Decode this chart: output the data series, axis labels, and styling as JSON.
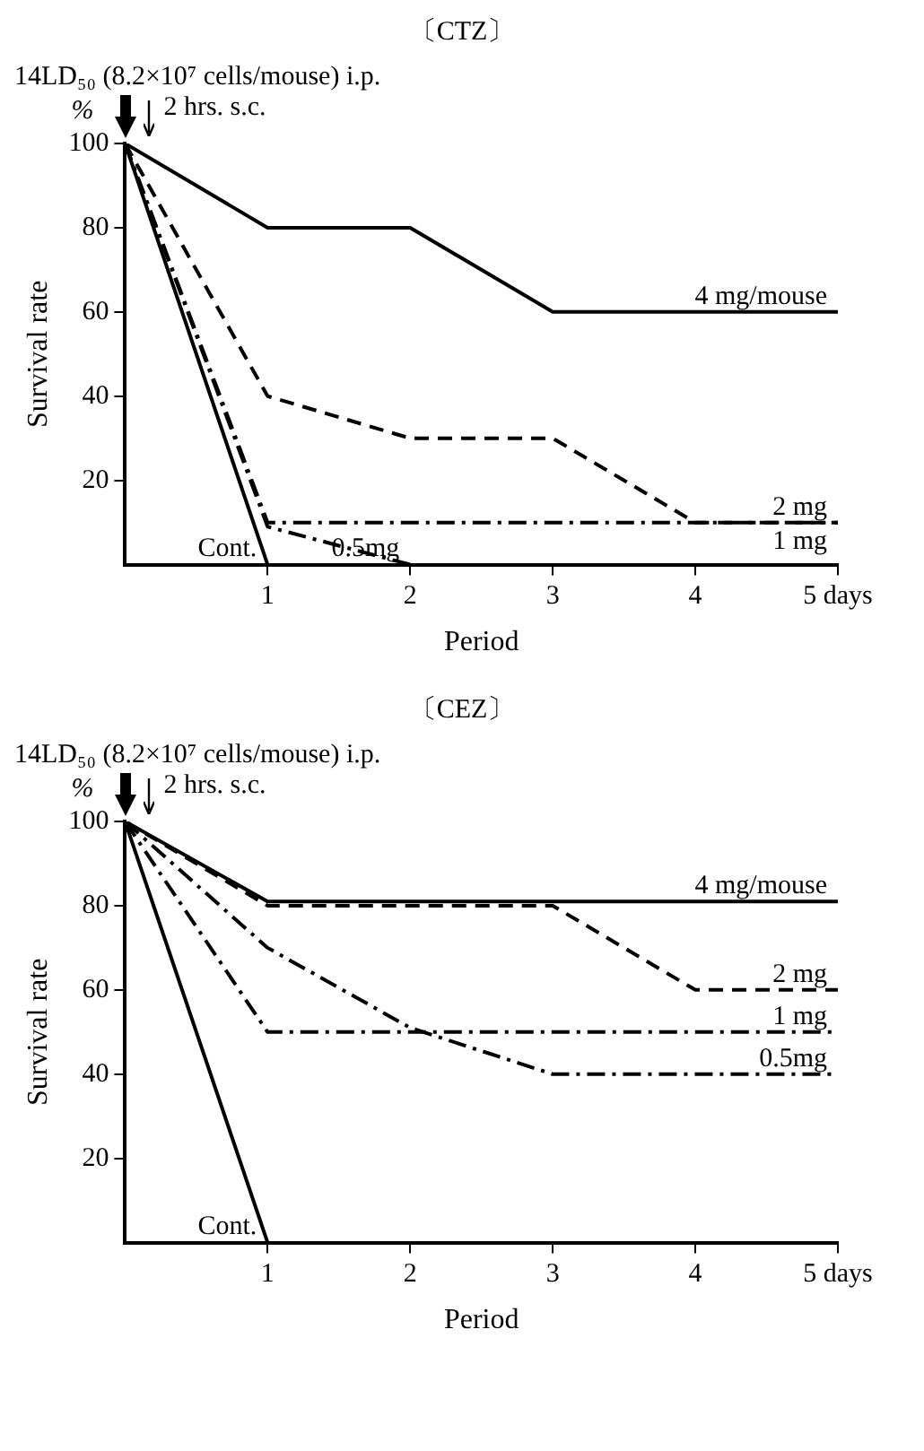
{
  "chart_data": [
    {
      "type": "line",
      "title": "〔CTZ〕",
      "xlabel": "Period",
      "ylabel": "Survival rate",
      "annotations": [
        "14LD₅₀ (8.2×10⁷ cells/mouse) i.p.",
        "%",
        "2 hrs. s.c."
      ],
      "xlim": [
        0,
        5
      ],
      "xticks": [
        1,
        2,
        3,
        4,
        {
          "value": 5,
          "label": "5 days"
        }
      ],
      "ylim": [
        0,
        100
      ],
      "yticks": [
        20,
        40,
        60,
        80,
        100
      ],
      "grid": false,
      "legend": false,
      "marker": "none",
      "series": [
        {
          "name": "4 mg/mouse",
          "color": "#000000",
          "line_style": "solid",
          "x": [
            0,
            1,
            2,
            3,
            4,
            5
          ],
          "values": [
            100,
            80,
            80,
            60,
            60,
            60
          ]
        },
        {
          "name": "2 mg",
          "color": "#000000",
          "line_style": "dashed",
          "x": [
            0,
            1,
            2,
            3,
            4,
            5
          ],
          "values": [
            100,
            40,
            30,
            30,
            10,
            10
          ]
        },
        {
          "name": "1 mg",
          "color": "#000000",
          "line_style": "dashdot",
          "x": [
            0,
            1,
            2,
            3,
            4,
            5
          ],
          "values": [
            100,
            10,
            10,
            10,
            10,
            10
          ]
        },
        {
          "name": "0.5mg",
          "color": "#000000",
          "line_style": "dashdot",
          "x": [
            0,
            1,
            2
          ],
          "values": [
            100,
            9,
            0
          ]
        },
        {
          "name": "Cont.",
          "color": "#000000",
          "line_style": "solid",
          "x": [
            0,
            1
          ],
          "values": [
            100,
            0
          ]
        }
      ]
    },
    {
      "type": "line",
      "title": "〔CEZ〕",
      "xlabel": "Period",
      "ylabel": "Survival rate",
      "annotations": [
        "14LD₅₀ (8.2×10⁷ cells/mouse) i.p.",
        "%",
        "2 hrs. s.c."
      ],
      "xlim": [
        0,
        5
      ],
      "xticks": [
        1,
        2,
        3,
        4,
        {
          "value": 5,
          "label": "5 days"
        }
      ],
      "ylim": [
        0,
        100
      ],
      "yticks": [
        20,
        40,
        60,
        80,
        100
      ],
      "grid": false,
      "legend": false,
      "marker": "none",
      "series": [
        {
          "name": "4 mg/mouse",
          "color": "#000000",
          "line_style": "solid",
          "x": [
            0,
            1,
            2,
            3,
            4,
            5
          ],
          "values": [
            100,
            81,
            81,
            81,
            81,
            81
          ]
        },
        {
          "name": "2 mg",
          "color": "#000000",
          "line_style": "dashed",
          "x": [
            0,
            1,
            2,
            3,
            4,
            5
          ],
          "values": [
            100,
            80,
            80,
            80,
            60,
            60
          ]
        },
        {
          "name": "1 mg",
          "color": "#000000",
          "line_style": "dashdot",
          "x": [
            0,
            1,
            2,
            3,
            4,
            5
          ],
          "values": [
            100,
            50,
            50,
            50,
            50,
            50
          ]
        },
        {
          "name": "0.5mg",
          "color": "#000000",
          "line_style": "dashdot",
          "x": [
            0,
            1,
            2,
            3,
            4,
            5
          ],
          "values": [
            100,
            70,
            51,
            40,
            40,
            40
          ]
        },
        {
          "name": "Cont.",
          "color": "#000000",
          "line_style": "solid",
          "x": [
            0,
            1
          ],
          "values": [
            100,
            0
          ]
        }
      ]
    }
  ]
}
